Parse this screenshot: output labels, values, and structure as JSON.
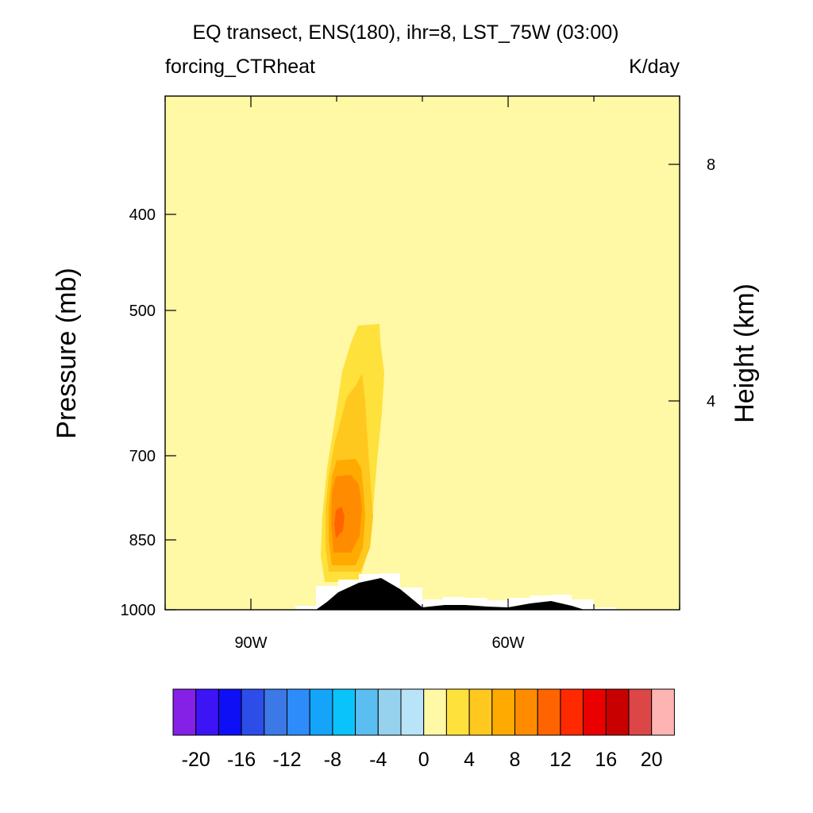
{
  "chart_data": {
    "type": "heatmap",
    "title": "EQ transect, ENS(180), ihr=8, LST_75W (03:00)",
    "left_string": "forcing_CTRheat",
    "right_string": "K/day",
    "ylabel": "Pressure (mb)",
    "ylabel_right": "Height (km)",
    "x_ticks": [
      "90W",
      "60W"
    ],
    "y_ticks": [
      "400",
      "500",
      "700",
      "850",
      "1000"
    ],
    "y_right_ticks": [
      "8",
      "4"
    ],
    "xlim": [
      "100W",
      "40W"
    ],
    "ylim": [
      1000,
      300
    ],
    "background_value": 1,
    "colorbar": {
      "labels": [
        "-20",
        "-16",
        "-12",
        "-8",
        "-4",
        "0",
        "4",
        "8",
        "12",
        "16",
        "20"
      ],
      "colors": [
        "#8520e6",
        "#3c14f5",
        "#0f0ff5",
        "#2d4de8",
        "#3c78e6",
        "#2d8cfa",
        "#14a5fa",
        "#0ac3fa",
        "#5abef0",
        "#96d2ee",
        "#b9e3f7",
        "#fff8a5",
        "#ffe13c",
        "#ffc81e",
        "#ffaa00",
        "#ff8c00",
        "#ff6400",
        "#ff2a00",
        "#eb0000",
        "#c80000",
        "#dc4646",
        "#ffb4b4"
      ]
    },
    "heating_core": {
      "longitude": "~80W",
      "level_range_mb": [
        510,
        930
      ],
      "max_K_per_day": 10,
      "max_level_mb": 820
    },
    "terrain": "Andes / South America topography near the surface (black)"
  }
}
